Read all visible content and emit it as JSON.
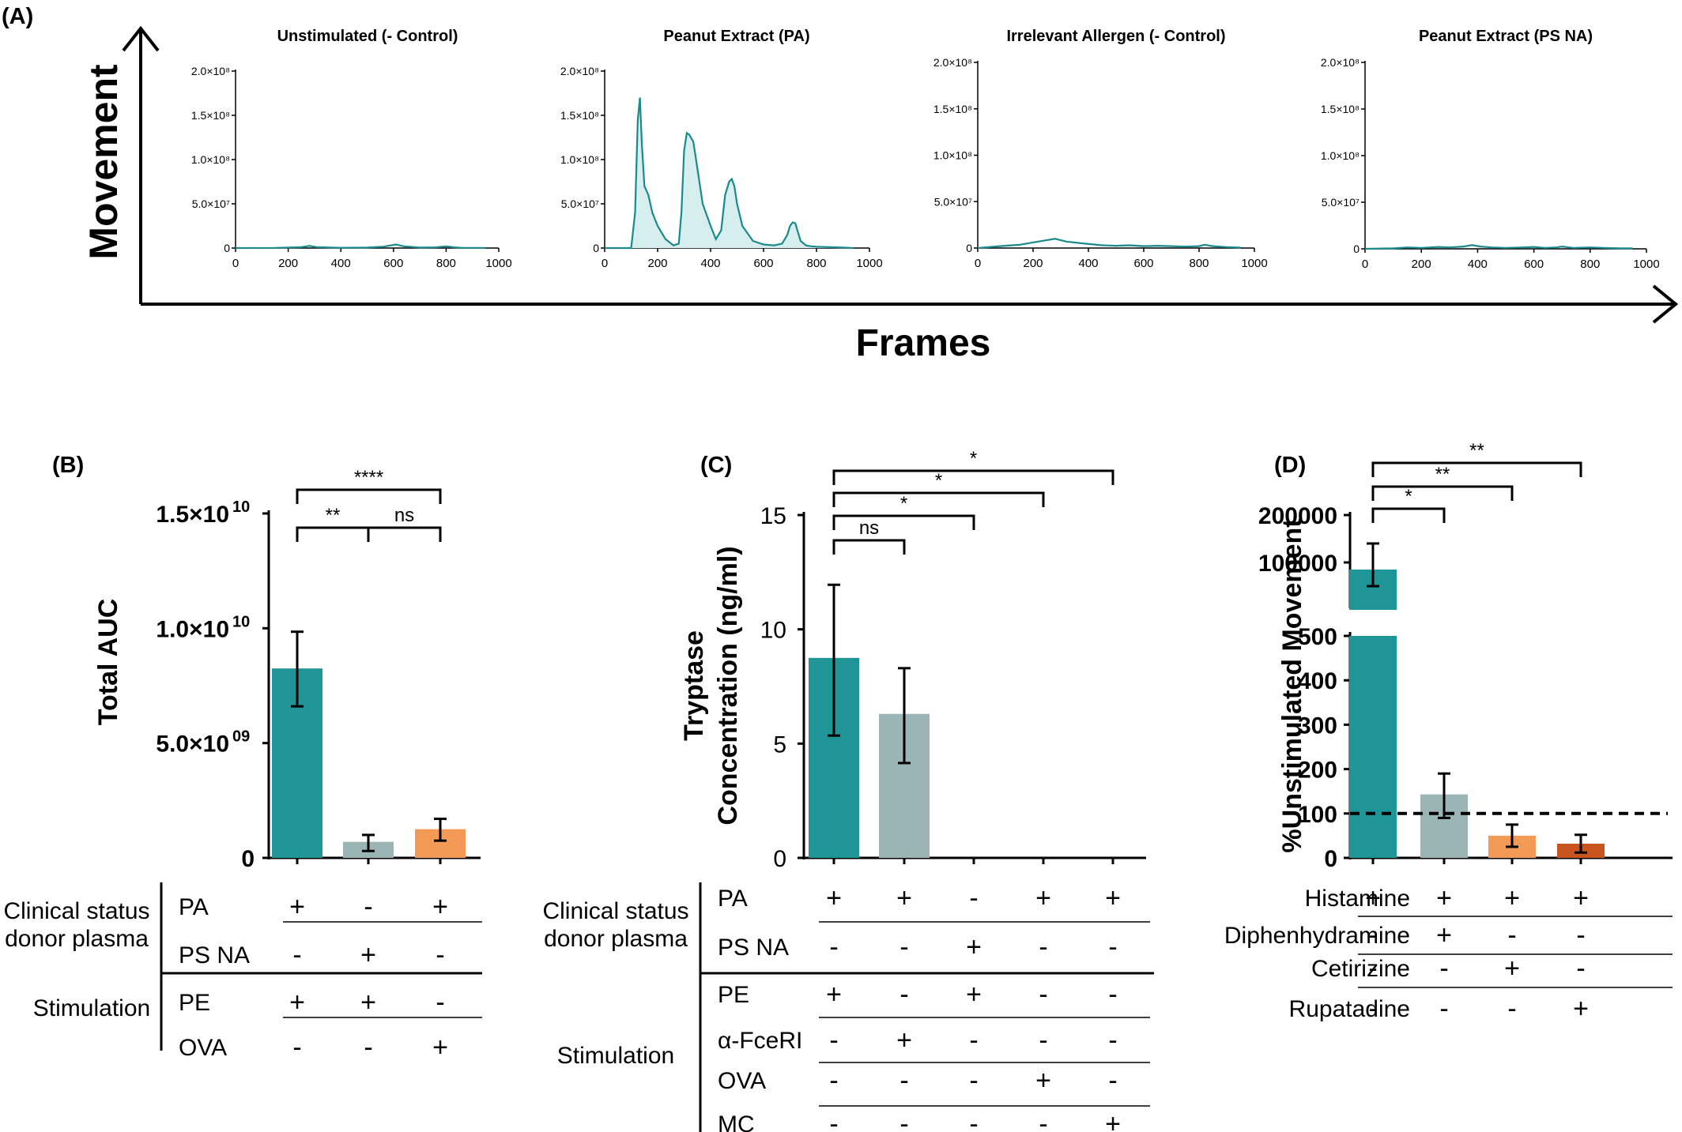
{
  "colors": {
    "teal": "#1f9597",
    "grey": "#9bb5b7",
    "orange": "#f39a56",
    "rust": "#c8541e",
    "line": "#1a8a8c",
    "fill": "#d6eeee"
  },
  "chart_data": [
    {
      "panel": "(A)",
      "type": "line",
      "ylabel": "Movement",
      "xlabel": "Frames",
      "subplots": [
        {
          "title": "Unstimulated (- Control)",
          "xlim": [
            0,
            1000
          ],
          "ylim": [
            0,
            200000000
          ],
          "xticks": [
            "0",
            "200",
            "400",
            "600",
            "800",
            "1000"
          ],
          "yticks": [
            "0",
            "5.0×10⁷",
            "1.0×10⁸",
            "1.5×10⁸",
            "2.0×10⁸"
          ],
          "x": [
            0,
            150,
            250,
            280,
            310,
            400,
            500,
            560,
            610,
            640,
            700,
            760,
            800,
            830,
            860,
            950
          ],
          "y": [
            0,
            200000,
            1000000,
            2500000,
            1000000,
            300000,
            500000,
            1500000,
            4000000,
            2000000,
            500000,
            800000,
            2000000,
            800000,
            300000,
            200000
          ],
          "fill": false
        },
        {
          "title": "Peanut Extract (PA)",
          "xlim": [
            0,
            1000
          ],
          "ylim": [
            0,
            200000000
          ],
          "xticks": [
            "0",
            "200",
            "400",
            "600",
            "800",
            "1000"
          ],
          "yticks": [
            "0",
            "5.0×10⁷",
            "1.0×10⁸",
            "1.5×10⁸",
            "2.0×10⁸"
          ],
          "x": [
            0,
            100,
            115,
            125,
            133,
            140,
            150,
            165,
            180,
            200,
            230,
            260,
            280,
            290,
            300,
            310,
            320,
            335,
            350,
            370,
            400,
            420,
            440,
            455,
            470,
            480,
            490,
            500,
            520,
            560,
            600,
            640,
            670,
            690,
            700,
            710,
            720,
            730,
            740,
            760,
            780,
            800,
            850,
            900,
            940
          ],
          "y": [
            0,
            0,
            40000000,
            145000000,
            170000000,
            120000000,
            70000000,
            60000000,
            40000000,
            25000000,
            10000000,
            3000000,
            5000000,
            40000000,
            110000000,
            130000000,
            128000000,
            120000000,
            90000000,
            50000000,
            25000000,
            10000000,
            20000000,
            60000000,
            75000000,
            78000000,
            70000000,
            50000000,
            25000000,
            8000000,
            4000000,
            3000000,
            5000000,
            15000000,
            25000000,
            29000000,
            28000000,
            18000000,
            8000000,
            3000000,
            2000000,
            1500000,
            1000000,
            500000,
            0
          ],
          "fill": true
        },
        {
          "title": "Irrelevant Allergen (- Control)",
          "xlim": [
            0,
            1000
          ],
          "ylim": [
            0,
            200000000
          ],
          "xticks": [
            "0",
            "200",
            "400",
            "600",
            "800",
            "1000"
          ],
          "yticks": [
            "0",
            "5.0×10⁷",
            "1.0×10⁸",
            "1.5×10⁸",
            "2.0×10⁸"
          ],
          "x": [
            0,
            80,
            150,
            200,
            240,
            280,
            320,
            380,
            450,
            500,
            550,
            600,
            650,
            700,
            750,
            800,
            820,
            850,
            900,
            950
          ],
          "y": [
            0,
            2000000,
            3500000,
            6000000,
            8000000,
            10000000,
            7000000,
            5000000,
            3000000,
            2500000,
            3000000,
            2000000,
            2500000,
            2000000,
            1500000,
            2000000,
            3500000,
            2000000,
            1000000,
            500000
          ],
          "fill": false
        },
        {
          "title": "Peanut Extract (PS NA)",
          "xlim": [
            0,
            1000
          ],
          "ylim": [
            0,
            200000000
          ],
          "xticks": [
            "0",
            "200",
            "400",
            "600",
            "800",
            "1000"
          ],
          "yticks": [
            "0",
            "5.0×10⁷",
            "1.0×10⁸",
            "1.5×10⁸",
            "2.0×10⁸"
          ],
          "x": [
            0,
            100,
            150,
            200,
            260,
            300,
            350,
            380,
            410,
            450,
            500,
            560,
            600,
            640,
            680,
            700,
            740,
            800,
            850,
            900,
            950
          ],
          "y": [
            0,
            500000,
            1500000,
            1000000,
            2000000,
            1500000,
            2500000,
            4000000,
            2500000,
            1500000,
            1000000,
            1500000,
            2000000,
            1000000,
            1500000,
            2500000,
            1000000,
            1500000,
            1000000,
            500000,
            500000
          ],
          "fill": false
        }
      ]
    },
    {
      "panel": "(B)",
      "type": "bar",
      "ylabel": "Total AUC",
      "yticks": [
        "0",
        "5.0×10",
        "1.0×10",
        "1.5×10"
      ],
      "ytick_exponents": [
        "",
        "09",
        "10",
        "10"
      ],
      "ylim": [
        0,
        15000000000
      ],
      "series": [
        {
          "values": [
            8250000000,
            700000000,
            1250000000
          ],
          "err_low": [
            6600000000,
            300000000,
            750000000
          ],
          "err_high": [
            9850000000,
            1000000000,
            1700000000
          ],
          "colors": [
            "teal",
            "grey",
            "orange"
          ]
        }
      ],
      "significance": [
        {
          "from": 0,
          "to": 1,
          "label": "**"
        },
        {
          "from": 1,
          "to": 2,
          "label": "ns"
        },
        {
          "from": 0,
          "to": 2,
          "label": "****"
        }
      ],
      "table": {
        "groups": [
          {
            "label": [
              "Clinical status",
              "donor plasma"
            ],
            "rows": [
              0,
              1
            ]
          },
          {
            "label": [
              "Stimulation"
            ],
            "rows": [
              2,
              3
            ]
          }
        ],
        "rows": [
          {
            "label": "PA",
            "vals": [
              "+",
              "-",
              "+"
            ]
          },
          {
            "label": "PS NA",
            "vals": [
              "-",
              "+",
              "-"
            ]
          },
          {
            "label": "PE",
            "vals": [
              "+",
              "+",
              "-"
            ]
          },
          {
            "label": "OVA",
            "vals": [
              "-",
              "-",
              "+"
            ]
          }
        ]
      }
    },
    {
      "panel": "(C)",
      "type": "bar",
      "ylabel": [
        "Tryptase",
        "Concentration (ng/ml)"
      ],
      "yticks": [
        "0",
        "5",
        "10",
        "15"
      ],
      "ylim": [
        0,
        15
      ],
      "series": [
        {
          "values": [
            8.75,
            6.3,
            0,
            0,
            0
          ],
          "err_low": [
            5.35,
            4.15,
            0,
            0,
            0
          ],
          "err_high": [
            11.95,
            8.3,
            0,
            0,
            0
          ],
          "colors": [
            "teal",
            "grey",
            "teal",
            "teal",
            "teal"
          ]
        }
      ],
      "significance": [
        {
          "from": 0,
          "to": 1,
          "label": "ns"
        },
        {
          "from": 0,
          "to": 2,
          "label": "*"
        },
        {
          "from": 0,
          "to": 3,
          "label": "*"
        },
        {
          "from": 0,
          "to": 4,
          "label": "*"
        }
      ],
      "table": {
        "groups": [
          {
            "label": [
              "Clinical status",
              "donor plasma"
            ],
            "rows": [
              0,
              1
            ]
          },
          {
            "label": [
              "Stimulation"
            ],
            "rows": [
              2,
              3,
              4,
              5
            ]
          }
        ],
        "rows": [
          {
            "label": "PA",
            "vals": [
              "+",
              "+",
              "-",
              "+",
              "+"
            ]
          },
          {
            "label": "PS NA",
            "vals": [
              "-",
              "-",
              "+",
              "-",
              "-"
            ]
          },
          {
            "label": "PE",
            "vals": [
              "+",
              "-",
              "+",
              "-",
              "-"
            ]
          },
          {
            "label": "α-FceRI",
            "vals": [
              "-",
              "+",
              "-",
              "-",
              "-"
            ]
          },
          {
            "label": "OVA",
            "vals": [
              "-",
              "-",
              "-",
              "+",
              "-"
            ]
          },
          {
            "label": "MC",
            "vals": [
              "-",
              "-",
              "-",
              "-",
              "+"
            ]
          }
        ]
      }
    },
    {
      "panel": "(D)",
      "type": "bar",
      "ylabel": "%Unstimulated Movement",
      "yticks_lower": [
        "0",
        "100",
        "200",
        "300",
        "400",
        "500"
      ],
      "yticks_upper": [
        "100000",
        "200000"
      ],
      "ylim_lower": [
        0,
        500
      ],
      "ylim_upper": [
        0,
        200000
      ],
      "reference_line": 100,
      "series": [
        {
          "values": [
            85000,
            143,
            50,
            32
          ],
          "err_low": [
            50000,
            90,
            25,
            12
          ],
          "err_high": [
            140000,
            190,
            75,
            52
          ],
          "colors": [
            "teal",
            "grey",
            "orange",
            "rust"
          ]
        }
      ],
      "significance": [
        {
          "from": 0,
          "to": 1,
          "label": "*"
        },
        {
          "from": 0,
          "to": 2,
          "label": "**"
        },
        {
          "from": 0,
          "to": 3,
          "label": "**"
        }
      ],
      "table": {
        "rows": [
          {
            "label": "Histamine",
            "vals": [
              "+",
              "+",
              "+",
              "+"
            ]
          },
          {
            "label": "Diphenhydramine",
            "vals": [
              "-",
              "+",
              "-",
              "-"
            ]
          },
          {
            "label": "Cetirizine",
            "vals": [
              "-",
              "-",
              "+",
              "-"
            ]
          },
          {
            "label": "Rupatadine",
            "vals": [
              "-",
              "-",
              "-",
              "+"
            ]
          }
        ]
      }
    }
  ]
}
